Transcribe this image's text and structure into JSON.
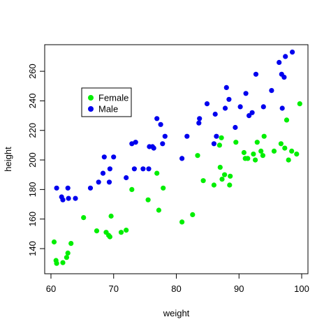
{
  "chart_data": {
    "type": "scatter",
    "title": "",
    "xlabel": "weight",
    "ylabel": "height",
    "xlim": [
      59,
      101
    ],
    "ylim": [
      123,
      278
    ],
    "x_ticks": [
      60,
      70,
      80,
      90,
      100
    ],
    "y_ticks": [
      140,
      160,
      180,
      200,
      220,
      240,
      260
    ],
    "grid": false,
    "legend_position": "top-left",
    "series": [
      {
        "name": "Female",
        "color": "#00ee00",
        "points": [
          [
            60.5,
            144.5
          ],
          [
            60.8,
            132
          ],
          [
            60.9,
            130
          ],
          [
            61.9,
            130.5
          ],
          [
            62.5,
            134
          ],
          [
            62.7,
            137
          ],
          [
            63.2,
            143.5
          ],
          [
            65.2,
            161
          ],
          [
            67.3,
            152
          ],
          [
            68.8,
            151
          ],
          [
            69.2,
            149
          ],
          [
            69.4,
            148
          ],
          [
            69.6,
            162
          ],
          [
            71.2,
            151
          ],
          [
            72.0,
            152.5
          ],
          [
            72.9,
            180
          ],
          [
            75.5,
            173
          ],
          [
            76.9,
            191
          ],
          [
            77.2,
            166
          ],
          [
            77.9,
            181
          ],
          [
            80.9,
            158
          ],
          [
            82.6,
            163
          ],
          [
            83.4,
            203
          ],
          [
            84.3,
            186
          ],
          [
            86.0,
            183
          ],
          [
            86.9,
            210
          ],
          [
            87.0,
            195
          ],
          [
            87.3,
            187
          ],
          [
            87.2,
            215
          ],
          [
            87.7,
            190
          ],
          [
            88.5,
            183
          ],
          [
            88.6,
            189
          ],
          [
            89.5,
            212
          ],
          [
            90.8,
            205
          ],
          [
            91.0,
            201
          ],
          [
            91.4,
            201
          ],
          [
            92.3,
            204
          ],
          [
            92.6,
            200
          ],
          [
            92.9,
            212
          ],
          [
            93.5,
            206
          ],
          [
            93.8,
            203
          ],
          [
            94.0,
            216
          ],
          [
            95.6,
            206
          ],
          [
            96.7,
            211
          ],
          [
            97.3,
            208
          ],
          [
            97.6,
            227
          ],
          [
            97.9,
            200
          ],
          [
            98.4,
            206
          ],
          [
            99.2,
            204
          ],
          [
            99.7,
            238
          ]
        ]
      },
      {
        "name": "Male",
        "color": "#0000ee",
        "points": [
          [
            60.9,
            181
          ],
          [
            61.7,
            175
          ],
          [
            61.9,
            173
          ],
          [
            62.7,
            181
          ],
          [
            62.8,
            174
          ],
          [
            63.9,
            174
          ],
          [
            66.3,
            181
          ],
          [
            67.6,
            185
          ],
          [
            68.3,
            191
          ],
          [
            68.5,
            202
          ],
          [
            69.3,
            185
          ],
          [
            69.4,
            194
          ],
          [
            70.0,
            202
          ],
          [
            72.0,
            188
          ],
          [
            72.9,
            211
          ],
          [
            73.3,
            194
          ],
          [
            73.5,
            212
          ],
          [
            74.7,
            194
          ],
          [
            75.7,
            209
          ],
          [
            75.6,
            194
          ],
          [
            76.2,
            209
          ],
          [
            76.4,
            208
          ],
          [
            76.9,
            228
          ],
          [
            77.5,
            224
          ],
          [
            77.8,
            211
          ],
          [
            78.2,
            216
          ],
          [
            80.9,
            201
          ],
          [
            81.7,
            216
          ],
          [
            83.6,
            225
          ],
          [
            83.7,
            228
          ],
          [
            84.9,
            238
          ],
          [
            86.0,
            211
          ],
          [
            86.2,
            231
          ],
          [
            86.4,
            216
          ],
          [
            87.8,
            235
          ],
          [
            88.0,
            249
          ],
          [
            88.4,
            241
          ],
          [
            89.4,
            222
          ],
          [
            90.2,
            236
          ],
          [
            91.1,
            245
          ],
          [
            91.6,
            230
          ],
          [
            92.1,
            232
          ],
          [
            92.7,
            258
          ],
          [
            93.9,
            236
          ],
          [
            95.2,
            247
          ],
          [
            96.4,
            266
          ],
          [
            96.8,
            258
          ],
          [
            96.9,
            235
          ],
          [
            97.2,
            256
          ],
          [
            97.4,
            270
          ],
          [
            98.5,
            273
          ]
        ]
      }
    ]
  }
}
